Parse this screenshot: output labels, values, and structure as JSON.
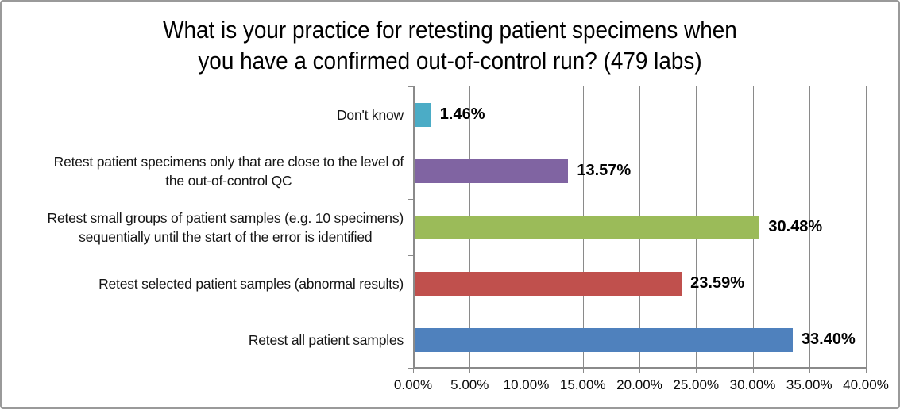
{
  "window": {
    "background": "#FFFFFF",
    "border_color": "#9A9A9A"
  },
  "chart_data": {
    "type": "bar",
    "orientation": "horizontal",
    "title": "What is your practice for retesting patient specimens when you have a confirmed out-of-control run? (479 labs)",
    "title_lines": [
      "What is your practice for retesting patient specimens when",
      "you have a confirmed out-of-control run? (479 labs)"
    ],
    "sample_size_note": "479 labs",
    "categories": [
      "Don't know",
      "Retest patient specimens only that are close to the level of the out-of-control QC",
      "Retest small groups of patient samples (e.g. 10 specimens) sequentially until the start of the error is identified",
      "Retest selected patient samples (abnormal results)",
      "Retest all patient samples"
    ],
    "category_label_lines": [
      [
        "Don't know"
      ],
      [
        "Retest patient specimens only that are close to the level of",
        "the out-of-control QC"
      ],
      [
        "Retest small groups of patient samples (e.g. 10 specimens)",
        "sequentially until the start of the error is identified"
      ],
      [
        "Retest selected patient samples (abnormal results)"
      ],
      [
        "Retest all patient samples"
      ]
    ],
    "values": [
      1.46,
      13.57,
      30.48,
      23.59,
      33.4
    ],
    "value_labels": [
      "1.46%",
      "13.57%",
      "30.48%",
      "23.59%",
      "33.40%"
    ],
    "bar_colors": [
      "#4BACC6",
      "#8064A2",
      "#9BBB59",
      "#C0504D",
      "#4F81BD"
    ],
    "xlim": [
      0,
      40
    ],
    "x_ticks": [
      0,
      5,
      10,
      15,
      20,
      25,
      30,
      35,
      40
    ],
    "x_tick_labels": [
      "0.00%",
      "5.00%",
      "10.00%",
      "15.00%",
      "20.00%",
      "25.00%",
      "30.00%",
      "35.00%",
      "40.00%"
    ],
    "grid": "vertical gridlines shown",
    "legend": "none",
    "axis_color": "#8A8A8A",
    "gridline_color": "#8A8A8A",
    "data_label_style": "bold, outside end of bar"
  }
}
